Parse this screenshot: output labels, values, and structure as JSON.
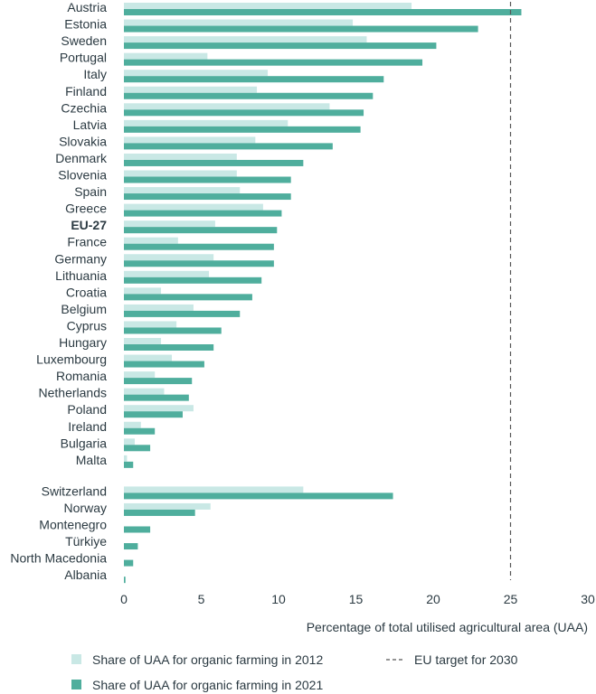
{
  "chart_data": {
    "type": "bar",
    "orientation": "horizontal",
    "xlabel": "Percentage of total utilised agricultural area (UAA)",
    "xlim": [
      0,
      30
    ],
    "xticks": [
      0,
      5,
      10,
      15,
      20,
      25,
      30
    ],
    "grid": false,
    "legend_position": "bottom",
    "categories": [
      "Austria",
      "Estonia",
      "Sweden",
      "Portugal",
      "Italy",
      "Finland",
      "Czechia",
      "Latvia",
      "Slovakia",
      "Denmark",
      "Slovenia",
      "Spain",
      "Greece",
      "EU-27",
      "France",
      "Germany",
      "Lithuania",
      "Croatia",
      "Belgium",
      "Cyprus",
      "Hungary",
      "Luxembourg",
      "Romania",
      "Netherlands",
      "Poland",
      "Ireland",
      "Bulgaria",
      "Malta",
      "Switzerland",
      "Norway",
      "Montenegro",
      "Türkiye",
      "North Macedonia",
      "Albania"
    ],
    "highlight_category": "EU-27",
    "group_break_after": "Malta",
    "series": [
      {
        "name": "Share of UAA for organic farming in 2012",
        "color": "#c9e8e5",
        "values": [
          18.6,
          14.8,
          15.7,
          5.4,
          9.3,
          8.6,
          13.3,
          10.6,
          8.5,
          7.3,
          7.3,
          7.5,
          9.0,
          5.9,
          3.5,
          5.8,
          5.5,
          2.4,
          4.5,
          3.4,
          2.4,
          3.1,
          2.0,
          2.6,
          4.5,
          1.1,
          0.7,
          0.2,
          11.6,
          5.6,
          0.0,
          0.0,
          0.0,
          0.0
        ]
      },
      {
        "name": "Share of UAA for organic farming in 2021",
        "color": "#4fae9d",
        "values": [
          25.7,
          22.9,
          20.2,
          19.3,
          16.8,
          16.1,
          15.5,
          15.3,
          13.5,
          11.6,
          10.8,
          10.8,
          10.2,
          9.9,
          9.7,
          9.7,
          8.9,
          8.3,
          7.5,
          6.3,
          5.8,
          5.2,
          4.4,
          4.2,
          3.8,
          2.0,
          1.7,
          0.6,
          17.4,
          4.6,
          1.7,
          0.9,
          0.6,
          0.1
        ]
      }
    ],
    "reference_line": {
      "value": 25,
      "label": "EU target for 2030",
      "style": "dashed",
      "color": "#555555"
    }
  }
}
